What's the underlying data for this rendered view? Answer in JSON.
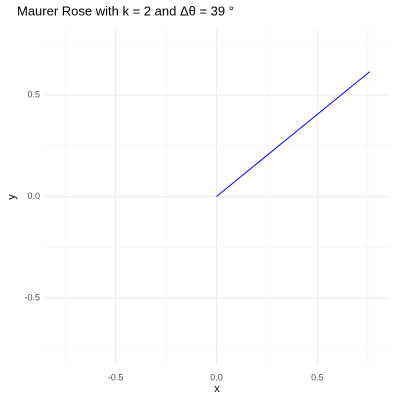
{
  "chart_data": {
    "type": "line",
    "title": "Maurer Rose with k = 2 and Δθ = 39 °",
    "x_label": "x",
    "y_label": "y",
    "x": [
      0,
      0.76
    ],
    "series": [
      {
        "color": "#0000ff",
        "values": [
          0,
          0.615
        ]
      }
    ],
    "xlim": [
      -0.85,
      0.86
    ],
    "ylim": [
      -0.83,
      0.82
    ],
    "xticks": [
      -0.5,
      {
        "value": 0,
        "label": "0.0"
      },
      0.5
    ],
    "yticks": [
      -0.5,
      {
        "value": 0,
        "label": "0.0"
      },
      0.5
    ],
    "minor_xticks": [
      -0.75,
      -0.25,
      0.25,
      0.75
    ],
    "minor_yticks": [
      -0.75,
      -0.25,
      0.25,
      0.75
    ],
    "grid": true
  }
}
